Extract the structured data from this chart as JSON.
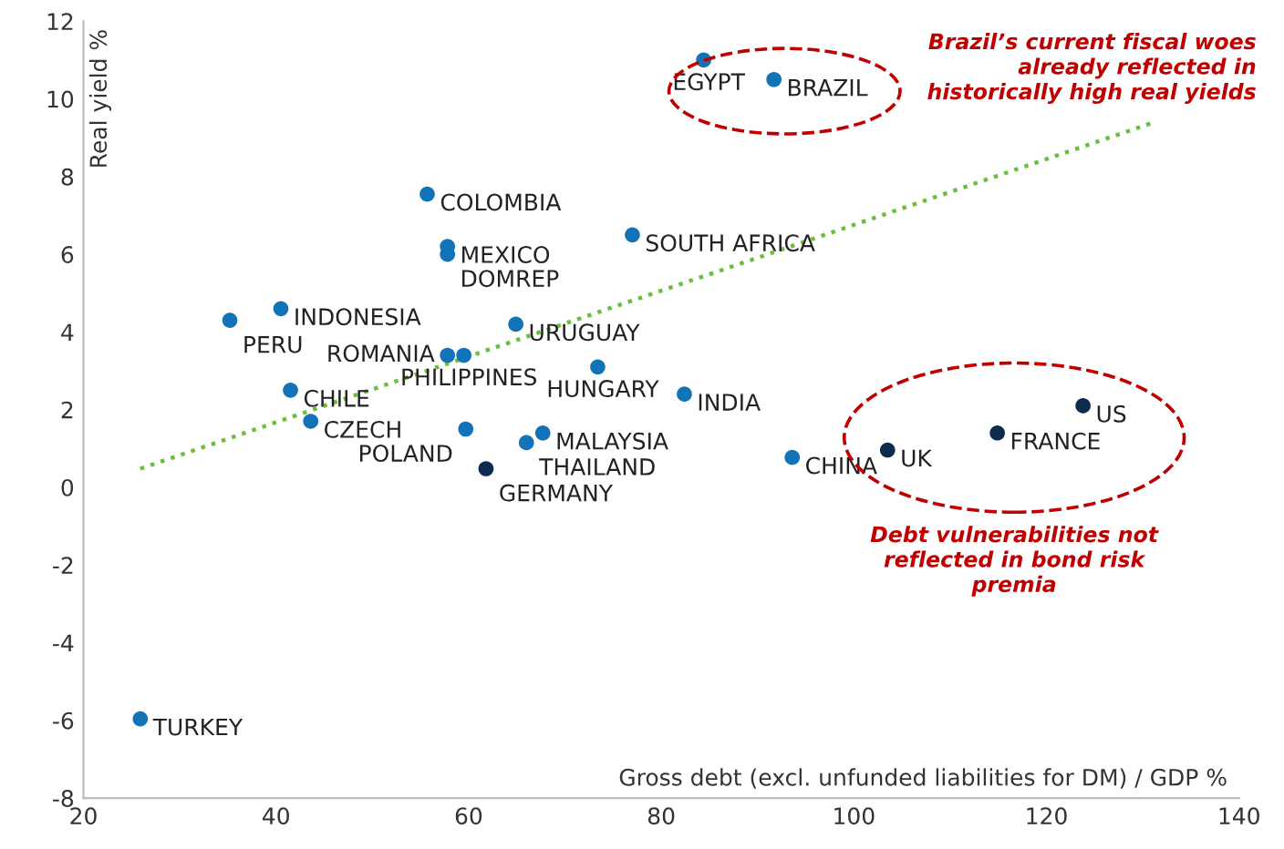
{
  "chart_data": {
    "type": "scatter",
    "xlabel": "Gross debt (excl. unfunded liabilities for DM) / GDP %",
    "ylabel": "Real yield %",
    "xlim": [
      20,
      140
    ],
    "xticks": [
      20,
      40,
      60,
      80,
      100,
      120,
      140
    ],
    "ylim": [
      -8,
      12
    ],
    "yticks": [
      -8,
      -6,
      -4,
      -2,
      0,
      2,
      4,
      6,
      8,
      10,
      12
    ],
    "grid": false,
    "legend": false,
    "marker": "circle",
    "series": [
      {
        "color": "#1273b8",
        "x": [
          84.4,
          55.7,
          57.8,
          57.8,
          77.0,
          40.5,
          35.2,
          64.9,
          59.5,
          57.8,
          73.4,
          41.5,
          82.4,
          43.6,
          59.7,
          67.7,
          66.0,
          93.6,
          25.9
        ],
        "values": [
          11.0,
          7.55,
          6.2,
          6.0,
          6.5,
          4.6,
          4.3,
          4.2,
          3.4,
          3.4,
          3.1,
          2.5,
          2.4,
          1.7,
          1.5,
          1.4,
          1.15,
          0.77,
          -5.96
        ]
      },
      {
        "color": "#0d2a4f",
        "x": [
          61.8
        ],
        "values": [
          0.48
        ]
      },
      {
        "color": "#1273b8",
        "x": [
          91.7
        ],
        "values": [
          10.5
        ]
      },
      {
        "color": "#0d2a4f",
        "x": [
          103.5,
          114.9,
          123.8
        ],
        "values": [
          0.96,
          1.4,
          2.1
        ]
      },
      {
        "type": "line",
        "color": "#6abf40",
        "line_style": "dotted",
        "marker": "none",
        "x": [
          25.9,
          131.2
        ],
        "values": [
          0.48,
          9.4
        ]
      }
    ],
    "annotations": [
      {
        "text": "EGYPT",
        "x": 84.4,
        "y": 11.0
      },
      {
        "text": "BRAZIL",
        "x": 91.7,
        "y": 10.5
      },
      {
        "text": "COLOMBIA",
        "x": 55.7,
        "y": 7.55
      },
      {
        "text": "MEXICO",
        "x": 57.8,
        "y": 6.2
      },
      {
        "text": "DOMREP",
        "x": 57.8,
        "y": 6.0
      },
      {
        "text": "SOUTH AFRICA",
        "x": 77.0,
        "y": 6.5
      },
      {
        "text": "INDONESIA",
        "x": 40.5,
        "y": 4.6
      },
      {
        "text": "PERU",
        "x": 35.2,
        "y": 4.3
      },
      {
        "text": "URUGUAY",
        "x": 64.9,
        "y": 4.2
      },
      {
        "text": "PHILIPPINES",
        "x": 59.5,
        "y": 3.4
      },
      {
        "text": "ROMANIA",
        "x": 57.8,
        "y": 3.4
      },
      {
        "text": "HUNGARY",
        "x": 73.4,
        "y": 3.1
      },
      {
        "text": "CHILE",
        "x": 41.5,
        "y": 2.5
      },
      {
        "text": "INDIA",
        "x": 82.4,
        "y": 2.4
      },
      {
        "text": "CZECH",
        "x": 43.6,
        "y": 1.7
      },
      {
        "text": "POLAND",
        "x": 59.7,
        "y": 1.5
      },
      {
        "text": "MALAYSIA",
        "x": 67.7,
        "y": 1.4
      },
      {
        "text": "THAILAND",
        "x": 66.0,
        "y": 1.15
      },
      {
        "text": "CHINA",
        "x": 93.6,
        "y": 0.77
      },
      {
        "text": "TURKEY",
        "x": 25.9,
        "y": -5.96
      },
      {
        "text": "GERMANY",
        "x": 61.8,
        "y": 0.48
      },
      {
        "text": "UK",
        "x": 103.5,
        "y": 0.96
      },
      {
        "text": "FRANCE",
        "x": 114.9,
        "y": 1.4
      },
      {
        "text": "US",
        "x": 123.8,
        "y": 2.1
      },
      "Brazil’s current fiscal woes\nalready reflected in\nhistorically high real yields",
      "Debt vulnerabilities not\nreflected in bond risk\npremia"
    ]
  }
}
